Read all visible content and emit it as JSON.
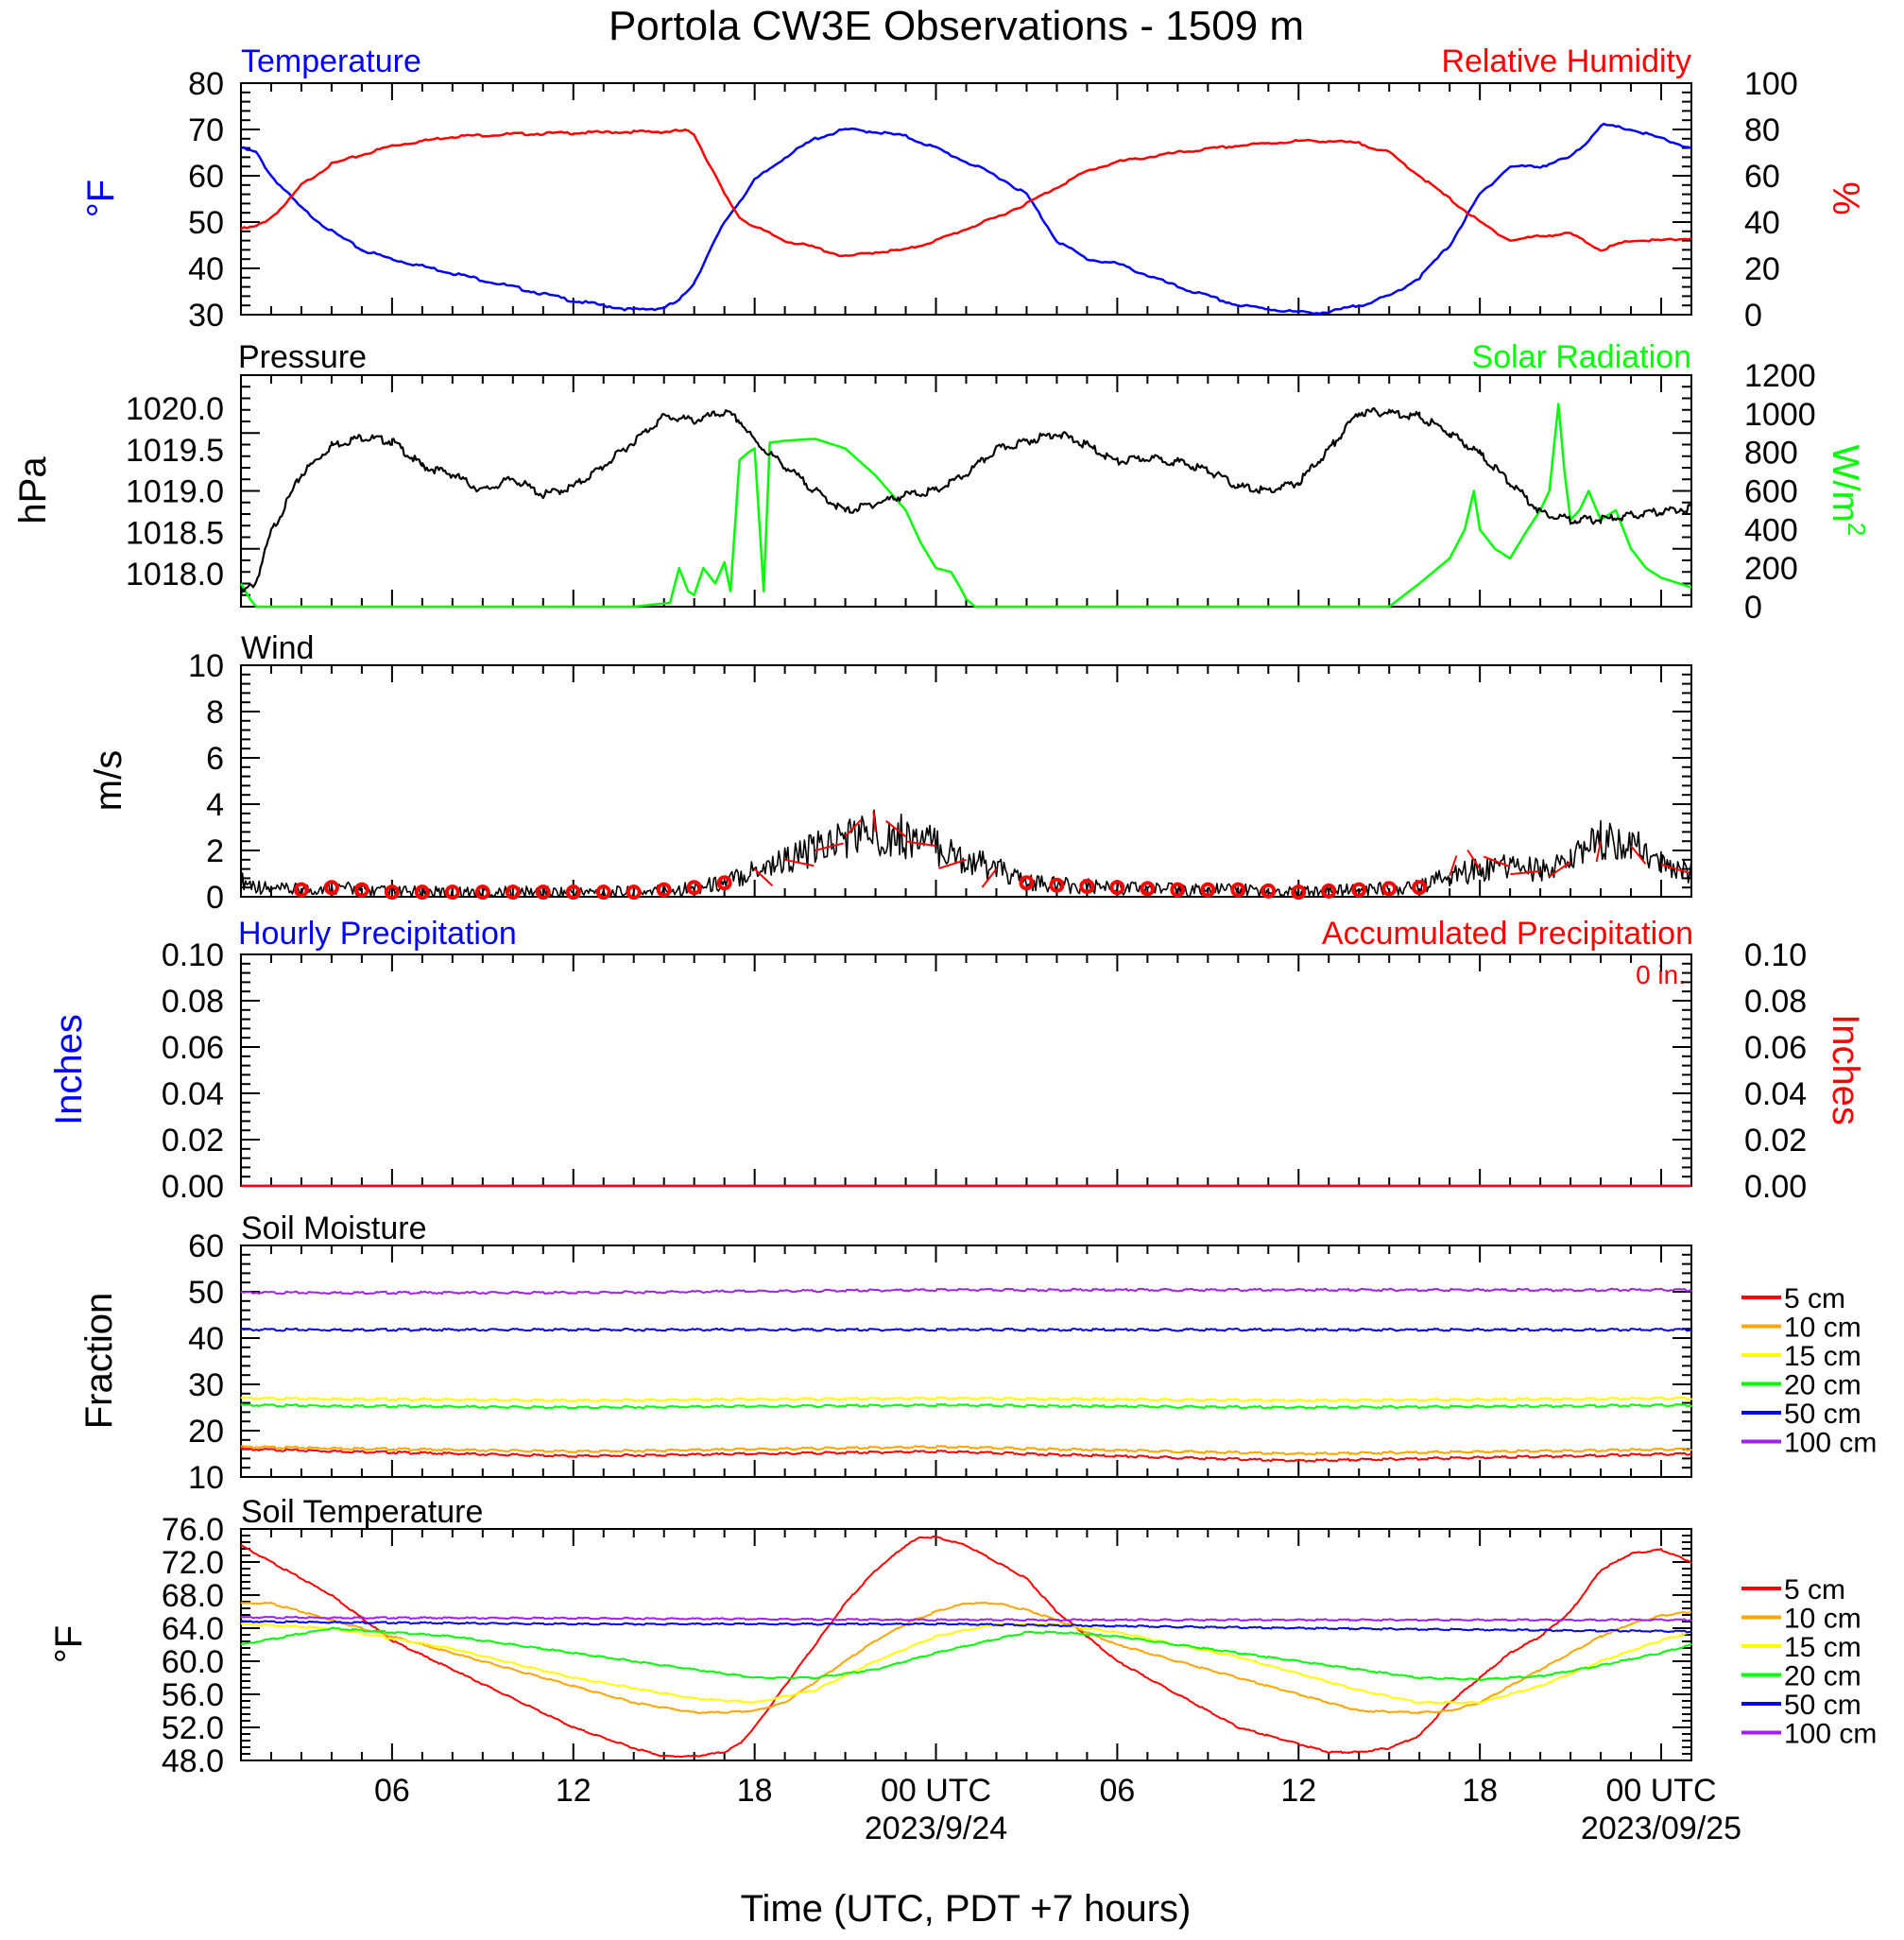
{
  "title": "Portola CW3E Observations - 1509 m",
  "x_axis": {
    "label": "Time (UTC, PDT +7 hours)",
    "ticks": [
      {
        "hour": 6,
        "label": "06",
        "date": ""
      },
      {
        "hour": 12,
        "label": "12",
        "date": ""
      },
      {
        "hour": 18,
        "label": "18",
        "date": ""
      },
      {
        "hour": 24,
        "label": "00 UTC",
        "date": "2023/9/24"
      },
      {
        "hour": 30,
        "label": "06",
        "date": ""
      },
      {
        "hour": 36,
        "label": "12",
        "date": ""
      },
      {
        "hour": 42,
        "label": "18",
        "date": ""
      },
      {
        "hour": 48,
        "label": "00 UTC",
        "date": "2023/09/25"
      }
    ],
    "range_hours": [
      1,
      49
    ]
  },
  "colors": {
    "temperature": "#0000ff",
    "humidity": "#ff0000",
    "pressure": "#000000",
    "solar": "#00ff00",
    "wind": "#000000",
    "wind_barb": "#ff0000",
    "hourly_precip": "#0000ff",
    "accum_precip": "#ff0000",
    "depth_5": "#ff0000",
    "depth_10": "#ffa500",
    "depth_15": "#ffff00",
    "depth_20": "#00ff00",
    "depth_50": "#0000ff",
    "depth_100": "#a020f0"
  },
  "panels": {
    "temp_rh": {
      "left_title": "Temperature",
      "right_title": "Relative Humidity",
      "left_unit": "°F",
      "right_unit": "%",
      "left_ticks": [
        "30",
        "40",
        "50",
        "60",
        "70",
        "80"
      ],
      "right_ticks": [
        "0",
        "20",
        "40",
        "60",
        "80",
        "100"
      ]
    },
    "pressure_solar": {
      "left_title": "Pressure",
      "right_title": "Solar Radiation",
      "left_unit": "hPa",
      "right_unit": "W/m",
      "right_unit_sup": "2",
      "left_ticks": [
        "1018.0",
        "1018.5",
        "1019.0",
        "1019.5",
        "1020.0"
      ],
      "right_ticks": [
        "0",
        "200",
        "400",
        "600",
        "800",
        "1000",
        "1200"
      ]
    },
    "wind": {
      "left_title": "Wind",
      "left_unit": "m/s",
      "left_ticks": [
        "0",
        "2",
        "4",
        "6",
        "8",
        "10"
      ]
    },
    "precip": {
      "left_title": "Hourly Precipitation",
      "right_title": "Accumulated Precipitation",
      "total": "0 in.",
      "left_unit": "Inches",
      "right_unit": "Inches",
      "left_ticks": [
        "0.00",
        "0.02",
        "0.04",
        "0.06",
        "0.08",
        "0.10"
      ],
      "right_ticks": [
        "0.00",
        "0.02",
        "0.04",
        "0.06",
        "0.08",
        "0.10"
      ]
    },
    "soil_moisture": {
      "left_title": "Soil Moisture",
      "left_unit": "Fraction",
      "left_ticks": [
        "10",
        "20",
        "30",
        "40",
        "50",
        "60"
      ],
      "legend": [
        "5 cm",
        "10 cm",
        "15 cm",
        "20 cm",
        "50 cm",
        "100 cm"
      ]
    },
    "soil_temp": {
      "left_title": "Soil Temperature",
      "left_unit": "°F",
      "left_ticks": [
        "48.0",
        "52.0",
        "56.0",
        "60.0",
        "64.0",
        "68.0",
        "72.0",
        "76.0"
      ],
      "legend": [
        "5 cm",
        "10 cm",
        "15 cm",
        "20 cm",
        "50 cm",
        "100 cm"
      ]
    }
  },
  "chart_data": [
    {
      "type": "line",
      "title": "Temperature / Relative Humidity",
      "ylim_left": [
        30,
        80
      ],
      "ylim_right": [
        0,
        100
      ],
      "series": [
        {
          "name": "Temperature",
          "axis": "left",
          "x": [
            1,
            1.5,
            2,
            3,
            4,
            5,
            6,
            8,
            10,
            12,
            13,
            14,
            15,
            15.5,
            16,
            17,
            18,
            19,
            20,
            21,
            22,
            23,
            24,
            25,
            26,
            27,
            28,
            29,
            30,
            32,
            34,
            36,
            37,
            38,
            39,
            40,
            41,
            42,
            43,
            44,
            45,
            45.5,
            46,
            47,
            48,
            49
          ],
          "y": [
            66,
            65,
            60,
            53,
            48,
            44,
            42,
            39,
            36,
            33,
            32,
            31,
            31.5,
            33,
            37,
            50,
            59,
            64,
            68,
            70,
            69.5,
            68.5,
            66,
            63,
            60,
            56,
            46,
            42,
            41,
            36,
            32,
            30.5,
            30.5,
            32,
            34,
            38,
            45,
            56,
            62,
            62,
            64,
            67,
            71,
            70,
            68,
            66
          ]
        },
        {
          "name": "Relative Humidity",
          "axis": "right",
          "x": [
            1,
            1.5,
            2,
            2.5,
            3,
            4,
            6,
            8,
            10,
            12,
            14,
            15,
            15.7,
            16,
            16.3,
            16.7,
            17,
            17.5,
            18,
            18.5,
            19,
            20,
            21,
            22,
            23,
            24,
            25,
            26,
            27,
            28,
            29,
            30,
            32,
            34,
            36,
            37,
            38,
            39,
            39.5,
            40,
            40.5,
            41,
            42,
            43,
            44,
            45,
            46,
            47,
            48,
            49
          ],
          "y": [
            37,
            38,
            42,
            48,
            56,
            65,
            73,
            77,
            78,
            78.5,
            79,
            79,
            79.5,
            78,
            70,
            60,
            52,
            42,
            38,
            35,
            32,
            29,
            25,
            27,
            28,
            32,
            37,
            42,
            48,
            55,
            62,
            66,
            70,
            73,
            75,
            75,
            74,
            70,
            65,
            60,
            55,
            50,
            40,
            32,
            34,
            35,
            28,
            32,
            32,
            33
          ]
        }
      ]
    },
    {
      "type": "line",
      "title": "Pressure / Solar Radiation",
      "ylim_left": [
        1017.6,
        1020.4
      ],
      "ylim_right": [
        0,
        1200
      ],
      "series": [
        {
          "name": "Pressure",
          "axis": "left",
          "x": [
            1,
            1.5,
            2,
            3,
            4,
            5,
            6,
            7,
            8,
            9,
            10,
            11,
            12,
            13,
            14,
            15,
            16,
            17,
            17.5,
            18,
            19,
            20,
            21,
            22,
            23,
            24,
            25,
            26,
            27,
            28,
            29,
            30,
            31,
            32,
            33,
            34,
            35,
            36,
            37,
            38,
            39,
            40,
            41,
            42,
            43,
            44,
            45,
            46,
            47,
            48,
            49
          ],
          "y": [
            1017.75,
            1017.9,
            1018.5,
            1019.2,
            1019.55,
            1019.65,
            1019.6,
            1019.3,
            1019.2,
            1019.0,
            1019.15,
            1018.95,
            1019.05,
            1019.3,
            1019.6,
            1019.9,
            1019.85,
            1019.95,
            1019.85,
            1019.6,
            1019.3,
            1019.0,
            1018.75,
            1018.85,
            1018.95,
            1019.0,
            1019.2,
            1019.5,
            1019.6,
            1019.7,
            1019.55,
            1019.35,
            1019.4,
            1019.35,
            1019.25,
            1019.05,
            1019.0,
            1019.1,
            1019.5,
            1019.95,
            1019.95,
            1019.9,
            1019.7,
            1019.45,
            1019.1,
            1018.75,
            1018.65,
            1018.65,
            1018.7,
            1018.75,
            1018.8
          ]
        },
        {
          "name": "Solar Radiation",
          "axis": "right",
          "x": [
            1,
            1.3,
            1.5,
            14,
            15.2,
            15.5,
            15.8,
            16,
            16.3,
            16.7,
            17,
            17.2,
            17.5,
            17.8,
            18,
            18.3,
            18.5,
            19,
            20,
            21,
            22,
            23,
            23.5,
            24,
            24.5,
            24.8,
            25,
            25.3,
            25.6,
            26,
            30,
            36,
            38,
            39,
            40,
            41,
            41.5,
            41.8,
            42,
            42.5,
            43,
            43.5,
            44,
            44.3,
            44.6,
            44.8,
            45,
            45.3,
            45.6,
            46,
            46.5,
            47,
            47.5,
            48,
            49
          ],
          "y": [
            120,
            40,
            0,
            0,
            20,
            200,
            80,
            60,
            200,
            120,
            230,
            80,
            760,
            800,
            820,
            80,
            850,
            860,
            870,
            820,
            680,
            500,
            330,
            200,
            180,
            100,
            40,
            0,
            0,
            0,
            0,
            0,
            0,
            0,
            120,
            250,
            400,
            600,
            400,
            300,
            250,
            380,
            500,
            600,
            1050,
            700,
            450,
            500,
            600,
            450,
            500,
            300,
            200,
            150,
            100
          ]
        }
      ]
    },
    {
      "type": "line",
      "title": "Wind",
      "ylim": [
        0,
        10
      ],
      "series": [
        {
          "name": "Wind",
          "x": [
            1,
            2,
            3,
            4,
            5,
            6,
            8,
            10,
            12,
            14,
            15,
            16,
            17,
            18,
            19,
            20,
            21,
            22,
            23,
            24,
            25,
            26,
            27,
            28,
            30,
            32,
            34,
            36,
            38,
            40,
            41,
            42,
            43,
            44,
            45,
            46,
            47,
            48,
            49
          ],
          "y": [
            0.7,
            0.3,
            0.3,
            0.4,
            0.3,
            0.2,
            0.2,
            0.2,
            0.2,
            0.2,
            0.3,
            0.4,
            0.6,
            1.2,
            1.6,
            2.0,
            2.6,
            2.8,
            2.6,
            2.2,
            1.6,
            1.2,
            0.6,
            0.5,
            0.4,
            0.3,
            0.3,
            0.2,
            0.3,
            0.4,
            0.9,
            1.2,
            1.3,
            1.1,
            1.5,
            2.4,
            2.2,
            1.4,
            1.1
          ]
        }
      ]
    },
    {
      "type": "line",
      "title": "Precipitation",
      "ylim": [
        0,
        0.1
      ],
      "series": [
        {
          "name": "Hourly Precipitation",
          "x": [
            1,
            49
          ],
          "y": [
            0,
            0
          ]
        },
        {
          "name": "Accumulated Precipitation",
          "x": [
            1,
            49
          ],
          "y": [
            0,
            0
          ]
        }
      ]
    },
    {
      "type": "line",
      "title": "Soil Moisture",
      "ylim": [
        10,
        60
      ],
      "series": [
        {
          "name": "5 cm",
          "x": [
            1,
            12,
            24,
            36,
            49
          ],
          "y": [
            16,
            14.5,
            15.5,
            13.5,
            15
          ]
        },
        {
          "name": "10 cm",
          "x": [
            1,
            12,
            24,
            36,
            49
          ],
          "y": [
            16.5,
            15.5,
            16.5,
            15,
            16
          ]
        },
        {
          "name": "15 cm",
          "x": [
            1,
            12,
            24,
            36,
            49
          ],
          "y": [
            27,
            26.5,
            27,
            26.5,
            27
          ]
        },
        {
          "name": "20 cm",
          "x": [
            1,
            12,
            24,
            36,
            49
          ],
          "y": [
            25.5,
            25,
            25.5,
            25,
            25.5
          ]
        },
        {
          "name": "50 cm",
          "x": [
            1,
            12,
            24,
            36,
            49
          ],
          "y": [
            41.8,
            41.8,
            41.8,
            41.8,
            41.8
          ]
        },
        {
          "name": "100 cm",
          "x": [
            1,
            12,
            24,
            36,
            49
          ],
          "y": [
            49.8,
            49.8,
            50.4,
            50.4,
            50.4
          ]
        }
      ]
    },
    {
      "type": "line",
      "title": "Soil Temperature",
      "ylim": [
        48,
        76
      ],
      "series": [
        {
          "name": "5 cm",
          "x": [
            1,
            4,
            6,
            8,
            10,
            12,
            14,
            15,
            16,
            17,
            17.5,
            18,
            19,
            20,
            21,
            22,
            23,
            23.5,
            24,
            25,
            26,
            27,
            28,
            30,
            32,
            34,
            36,
            37,
            38,
            39,
            40,
            41,
            42,
            43,
            44,
            45,
            46,
            47,
            48,
            49
          ],
          "y": [
            74,
            68,
            62.5,
            59,
            55.5,
            52,
            49.5,
            48.5,
            48.5,
            49,
            50,
            52,
            57,
            62,
            67,
            71,
            74,
            75,
            75,
            74,
            72,
            70,
            66,
            60,
            56,
            52,
            50,
            49,
            49,
            49.5,
            51,
            55,
            58,
            61,
            63,
            66,
            71,
            73,
            73.5,
            72
          ]
        },
        {
          "name": "10 cm",
          "x": [
            1,
            2,
            4,
            6,
            8,
            10,
            12,
            14,
            16,
            17,
            18,
            19,
            20,
            21,
            22,
            23,
            24,
            25,
            26,
            27,
            28,
            30,
            32,
            34,
            36,
            38,
            40,
            41,
            42,
            43,
            44,
            45,
            46,
            47,
            48,
            49
          ],
          "y": [
            67,
            67,
            65,
            63,
            61,
            59,
            57,
            55,
            53.8,
            53.8,
            54,
            55,
            57.5,
            60,
            62.5,
            64.5,
            66,
            67,
            67,
            66.2,
            65,
            62,
            60,
            58,
            56,
            54,
            53.8,
            54,
            55,
            57,
            59,
            61,
            63,
            64.5,
            65.5,
            66
          ]
        },
        {
          "name": "15 cm",
          "x": [
            1,
            4,
            8,
            12,
            16,
            18,
            20,
            22,
            24,
            26,
            27,
            28,
            30,
            34,
            38,
            40,
            42,
            44,
            46,
            48,
            49
          ],
          "y": [
            64.5,
            64,
            61.5,
            58,
            55.5,
            55,
            56.5,
            60,
            63,
            64.5,
            64.5,
            64.5,
            63.5,
            60.5,
            56.5,
            55,
            55,
            57,
            60,
            62.5,
            63.5
          ]
        },
        {
          "name": "20 cm",
          "x": [
            1,
            4,
            8,
            12,
            16,
            18,
            20,
            22,
            24,
            27,
            28,
            30,
            34,
            38,
            40,
            42,
            44,
            46,
            48,
            49
          ],
          "y": [
            62,
            64,
            63,
            61,
            59,
            58,
            58,
            59,
            61,
            63.5,
            63.5,
            63,
            61,
            59,
            58,
            57.8,
            58.2,
            59.5,
            61,
            62
          ]
        },
        {
          "name": "50 cm",
          "x": [
            1,
            12,
            24,
            36,
            49
          ],
          "y": [
            64.8,
            64.5,
            64.5,
            64,
            63.6
          ]
        },
        {
          "name": "100 cm",
          "x": [
            1,
            12,
            24,
            36,
            49
          ],
          "y": [
            65.3,
            65.2,
            65,
            65,
            65
          ]
        }
      ]
    }
  ]
}
